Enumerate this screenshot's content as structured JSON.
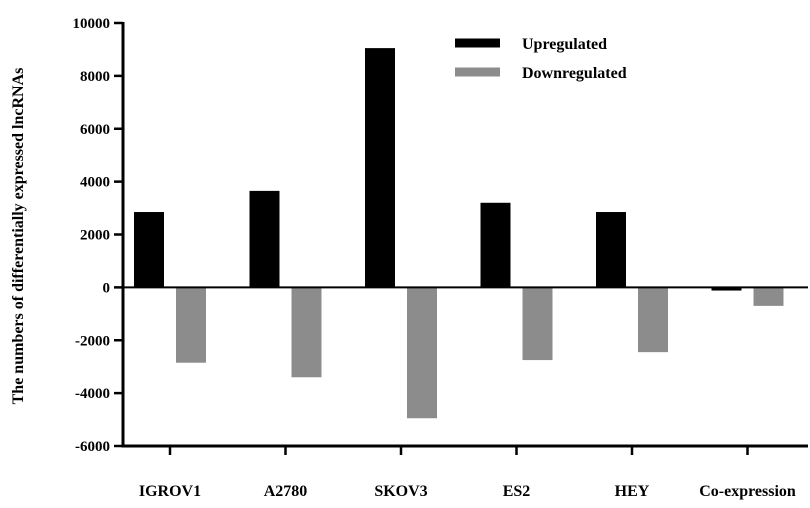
{
  "chart_data": {
    "type": "bar",
    "title": "",
    "xlabel": "",
    "ylabel": "The numbers of differentially expressed lncRNAs",
    "ylim": [
      -6000,
      10000
    ],
    "yticks": [
      10000,
      8000,
      6000,
      4000,
      2000,
      0,
      -2000,
      -4000,
      -6000
    ],
    "categories": [
      "IGROV1",
      "A2780",
      "SKOV3",
      "ES2",
      "HEY",
      "Co-expression"
    ],
    "series": [
      {
        "name": "Upregulated",
        "color": "#000000",
        "values": [
          2850,
          3650,
          9050,
          3200,
          2850,
          -120
        ]
      },
      {
        "name": "Downregulated",
        "color": "#8c8c8c",
        "values": [
          -2850,
          -3400,
          -4950,
          -2750,
          -2450,
          -700
        ]
      }
    ],
    "legend": {
      "position": "top-center",
      "entries": [
        "Upregulated",
        "Downregulated"
      ]
    },
    "grid": false
  }
}
